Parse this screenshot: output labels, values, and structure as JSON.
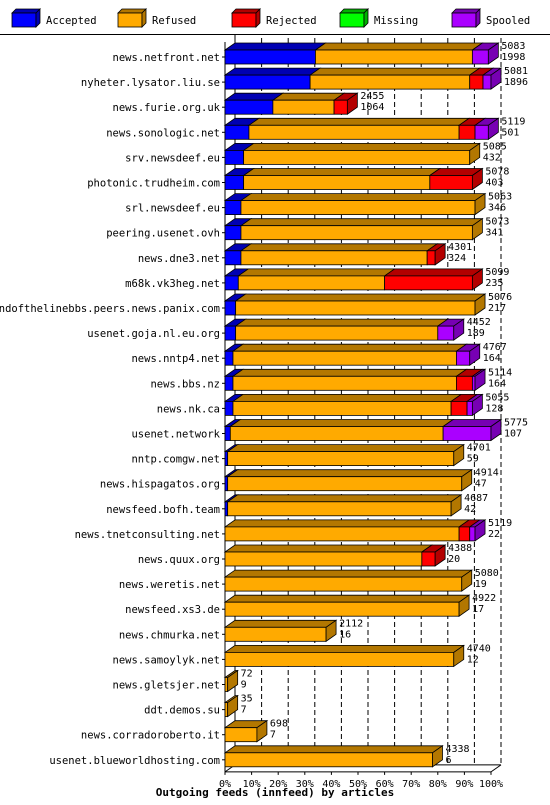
{
  "chart_data": {
    "type": "bar",
    "title": "",
    "xlabel": "Outgoing feeds (innfeed) by articles",
    "ylabel": "",
    "xlim": [
      0,
      100
    ],
    "x_ticks": [
      "0%",
      "10%",
      "20%",
      "30%",
      "40%",
      "50%",
      "60%",
      "70%",
      "80%",
      "90%",
      "100%"
    ],
    "stacked": true,
    "percent_axis": true,
    "legend_position": "top",
    "grid": true,
    "colors": {
      "Accepted": "#0000ff",
      "Refused": "#ffaa00",
      "Rejected": "#ff0000",
      "Missing": "#00ff00",
      "Spooled": "#aa00ff"
    },
    "legend": [
      "Accepted",
      "Refused",
      "Rejected",
      "Missing",
      "Spooled"
    ],
    "rows": [
      {
        "name": "news.netfront.net",
        "label_total": "5083",
        "label_accepted": "1998",
        "pct": [
          34,
          59,
          0,
          0,
          6
        ]
      },
      {
        "name": "nyheter.lysator.liu.se",
        "label_total": "5081",
        "label_accepted": "1896",
        "pct": [
          32,
          60,
          5,
          0,
          3
        ]
      },
      {
        "name": "news.furie.org.uk",
        "label_total": "2455",
        "label_accepted": "1064",
        "pct": [
          18,
          23,
          5,
          0,
          0
        ]
      },
      {
        "name": "news.sonologic.net",
        "label_total": "5119",
        "label_accepted": "501",
        "pct": [
          9,
          79,
          6,
          0,
          5
        ]
      },
      {
        "name": "srv.newsdeef.eu",
        "label_total": "5085",
        "label_accepted": "432",
        "pct": [
          7,
          85,
          0,
          0,
          0
        ]
      },
      {
        "name": "photonic.trudheim.com",
        "label_total": "5078",
        "label_accepted": "403",
        "pct": [
          7,
          70,
          16,
          0,
          0
        ]
      },
      {
        "name": "srl.newsdeef.eu",
        "label_total": "5063",
        "label_accepted": "346",
        "pct": [
          6,
          88,
          0,
          0,
          0
        ]
      },
      {
        "name": "peering.usenet.ovh",
        "label_total": "5073",
        "label_accepted": "341",
        "pct": [
          6,
          87,
          0,
          0,
          0
        ]
      },
      {
        "name": "news.dne3.net",
        "label_total": "4301",
        "label_accepted": "324",
        "pct": [
          6,
          70,
          3,
          0,
          0
        ]
      },
      {
        "name": "m68k.vk3heg.net",
        "label_total": "5099",
        "label_accepted": "235",
        "pct": [
          5,
          55,
          33,
          0,
          0
        ]
      },
      {
        "name": "endofthelinebbs.peers.news.panix.com",
        "label_total": "5076",
        "label_accepted": "217",
        "pct": [
          4,
          90,
          0,
          0,
          0
        ]
      },
      {
        "name": "usenet.goja.nl.eu.org",
        "label_total": "4452",
        "label_accepted": "189",
        "pct": [
          4,
          76,
          0,
          0,
          6
        ]
      },
      {
        "name": "news.nntp4.net",
        "label_total": "4767",
        "label_accepted": "164",
        "pct": [
          3,
          84,
          0,
          0,
          5
        ]
      },
      {
        "name": "news.bbs.nz",
        "label_total": "5114",
        "label_accepted": "164",
        "pct": [
          3,
          84,
          6,
          0,
          1
        ]
      },
      {
        "name": "news.nk.ca",
        "label_total": "5055",
        "label_accepted": "128",
        "pct": [
          3,
          82,
          6,
          0,
          2
        ]
      },
      {
        "name": "usenet.network",
        "label_total": "5775",
        "label_accepted": "107",
        "pct": [
          2,
          80,
          0,
          0,
          18
        ]
      },
      {
        "name": "nntp.comgw.net",
        "label_total": "4701",
        "label_accepted": "59",
        "pct": [
          1,
          85,
          0,
          0,
          0
        ]
      },
      {
        "name": "news.hispagatos.org",
        "label_total": "4914",
        "label_accepted": "47",
        "pct": [
          1,
          88,
          0,
          0,
          0
        ]
      },
      {
        "name": "newsfeed.bofh.team",
        "label_total": "4687",
        "label_accepted": "42",
        "pct": [
          1,
          84,
          0,
          0,
          0
        ]
      },
      {
        "name": "news.tnetconsulting.net",
        "label_total": "5119",
        "label_accepted": "22",
        "pct": [
          0,
          88,
          4,
          0,
          2
        ]
      },
      {
        "name": "news.quux.org",
        "label_total": "4388",
        "label_accepted": "20",
        "pct": [
          0,
          74,
          5,
          0,
          0
        ]
      },
      {
        "name": "news.weretis.net",
        "label_total": "5080",
        "label_accepted": "19",
        "pct": [
          0,
          89,
          0,
          0,
          0
        ]
      },
      {
        "name": "newsfeed.xs3.de",
        "label_total": "4922",
        "label_accepted": "17",
        "pct": [
          0,
          88,
          0,
          0,
          0
        ]
      },
      {
        "name": "news.chmurka.net",
        "label_total": "2112",
        "label_accepted": "16",
        "pct": [
          0,
          38,
          0,
          0,
          0
        ]
      },
      {
        "name": "news.samoylyk.net",
        "label_total": "4740",
        "label_accepted": "12",
        "pct": [
          0,
          86,
          0,
          0,
          0
        ]
      },
      {
        "name": "news.gletsjer.net",
        "label_total": "72",
        "label_accepted": "9",
        "pct": [
          0,
          1,
          0,
          0,
          0
        ]
      },
      {
        "name": "ddt.demos.su",
        "label_total": "35",
        "label_accepted": "7",
        "pct": [
          0,
          1,
          0,
          0,
          0
        ]
      },
      {
        "name": "news.corradoroberto.it",
        "label_total": "698",
        "label_accepted": "7",
        "pct": [
          0,
          12,
          0,
          0,
          0
        ]
      },
      {
        "name": "usenet.blueworldhosting.com",
        "label_total": "4338",
        "label_accepted": "6",
        "pct": [
          0,
          78,
          0,
          0,
          0
        ]
      }
    ]
  }
}
